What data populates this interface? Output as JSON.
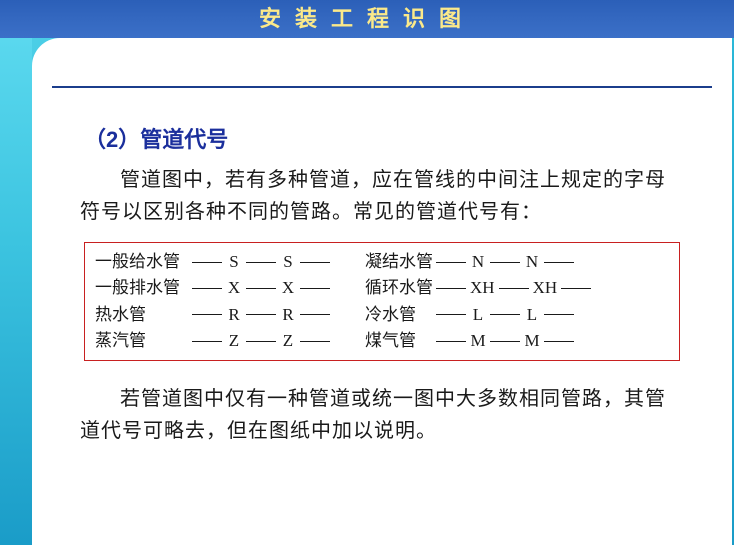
{
  "header": "安装工程识图",
  "section_title": "（2）管道代号",
  "paragraph1": "管道图中，若有多种管道，应在管线的中间注上规定的字母符号以区别各种不同的管路。常见的管道代号有：",
  "table": {
    "border_color": "#c82020",
    "text_color": "#1a1a1a",
    "font_size": 17,
    "rows": [
      {
        "left_label": "一般给水管",
        "left_code": "S",
        "right_label": "凝结水管",
        "right_code": "N"
      },
      {
        "left_label": "一般排水管",
        "left_code": "X",
        "right_label": "循环水管",
        "right_code": "XH"
      },
      {
        "left_label": "热水管",
        "left_code": "R",
        "right_label": "冷水管",
        "right_code": "L"
      },
      {
        "left_label": "蒸汽管",
        "left_code": "Z",
        "right_label": "煤气管",
        "right_code": "M"
      }
    ]
  },
  "paragraph2": "若管道图中仅有一种管道或统一图中大多数相同管路，其管道代号可略去，但在图纸中加以说明。",
  "styles": {
    "header_bg": "#3468c0",
    "header_text_color": "#fbe98a",
    "title_color": "#1b2f9c",
    "body_text_color": "#1a1a1a",
    "background_gradient": [
      "#4fd0e8",
      "#1a9cc8"
    ],
    "slide_bg": "#ffffff",
    "divider_color": "#1b3d8c",
    "title_fontsize": 22,
    "body_fontsize": 20
  }
}
